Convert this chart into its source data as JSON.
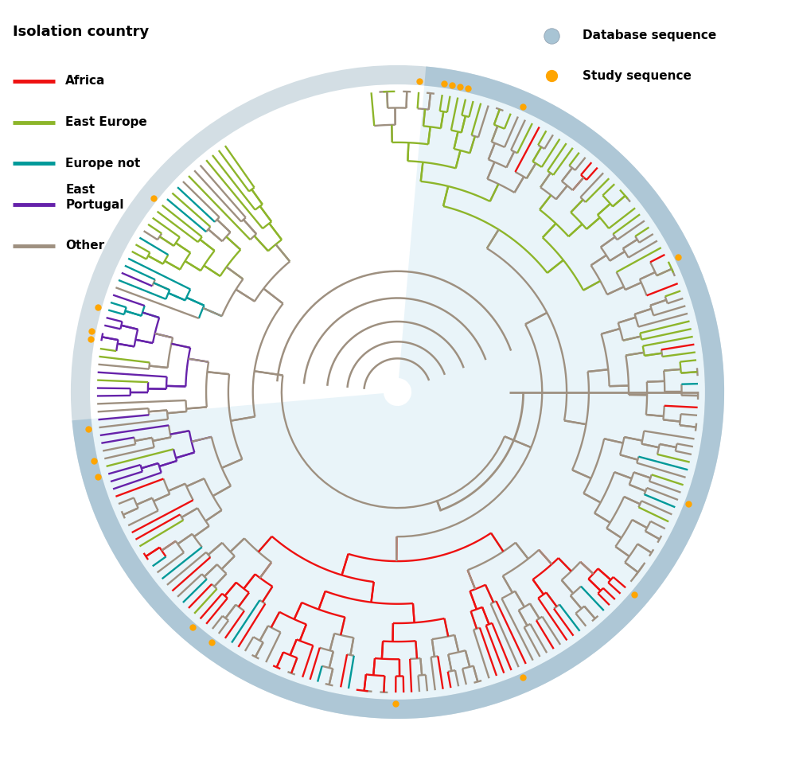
{
  "legend_isolation_title": "Isolation country",
  "legend_items": [
    {
      "label": "Africa",
      "color": "#EE1010"
    },
    {
      "label": "East Europe",
      "color": "#8DB52A"
    },
    {
      "label": "Europe not\nEast",
      "color": "#009999"
    },
    {
      "label": "Portugal",
      "color": "#6622AA"
    },
    {
      "label": "Other",
      "color": "#9E9080"
    }
  ],
  "legend_seq_items": [
    {
      "label": "Database sequence",
      "color": "#A8C4D4"
    },
    {
      "label": "Study sequence",
      "color": "#FFA500"
    }
  ],
  "bg_color": "#FFFFFF",
  "other_color": "#9E9080",
  "africa_color": "#EE1010",
  "east_europe_color": "#8DB52A",
  "europe_not_east_color": "#009999",
  "portugal_color": "#6622AA",
  "study_seq_color": "#FFA500",
  "database_seq_color": "#A8C4D4",
  "n_leaves": 220
}
